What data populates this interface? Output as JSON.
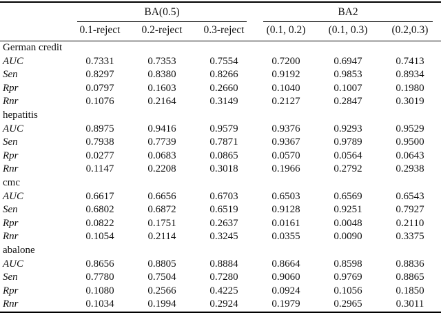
{
  "table": {
    "col_groups": [
      {
        "label": "BA(0.5)",
        "columns": [
          "0.1-reject",
          "0.2-reject",
          "0.3-reject"
        ]
      },
      {
        "label": "BA2",
        "columns": [
          "(0.1, 0.2)",
          "(0.1, 0.3)",
          "(0.2,0.3)"
        ]
      }
    ],
    "groups": [
      {
        "name": "German credit",
        "rows": [
          {
            "metric": "AUC",
            "values": [
              "0.7331",
              "0.7353",
              "0.7554",
              "0.7200",
              "0.6947",
              "0.7413"
            ]
          },
          {
            "metric": "Sen",
            "values": [
              "0.8297",
              "0.8380",
              "0.8266",
              "0.9192",
              "0.9853",
              "0.8934"
            ]
          },
          {
            "metric": "Rpr",
            "values": [
              "0.0797",
              "0.1603",
              "0.2660",
              "0.1040",
              "0.1007",
              "0.1980"
            ]
          },
          {
            "metric": "Rnr",
            "values": [
              "0.1076",
              "0.2164",
              "0.3149",
              "0.2127",
              "0.2847",
              "0.3019"
            ]
          }
        ]
      },
      {
        "name": "hepatitis",
        "rows": [
          {
            "metric": "AUC",
            "values": [
              "0.8975",
              "0.9416",
              "0.9579",
              "0.9376",
              "0.9293",
              "0.9529"
            ]
          },
          {
            "metric": "Sen",
            "values": [
              "0.7938",
              "0.7739",
              "0.7871",
              "0.9367",
              "0.9789",
              "0.9500"
            ]
          },
          {
            "metric": "Rpr",
            "values": [
              "0.0277",
              "0.0683",
              "0.0865",
              "0.0570",
              "0.0564",
              "0.0643"
            ]
          },
          {
            "metric": "Rnr",
            "values": [
              "0.1147",
              "0.2208",
              "0.3018",
              "0.1966",
              "0.2792",
              "0.2938"
            ]
          }
        ]
      },
      {
        "name": "cmc",
        "rows": [
          {
            "metric": "AUC",
            "values": [
              "0.6617",
              "0.6656",
              "0.6703",
              "0.6503",
              "0.6569",
              "0.6543"
            ]
          },
          {
            "metric": "Sen",
            "values": [
              "0.6802",
              "0.6872",
              "0.6519",
              "0.9128",
              "0.9251",
              "0.7927"
            ]
          },
          {
            "metric": "Rpr",
            "values": [
              "0.0822",
              "0.1751",
              "0.2637",
              "0.0161",
              "0.0048",
              "0.2110"
            ]
          },
          {
            "metric": "Rnr",
            "values": [
              "0.1054",
              "0.2114",
              "0.3245",
              "0.0355",
              "0.0090",
              "0.3375"
            ]
          }
        ]
      },
      {
        "name": "abalone",
        "rows": [
          {
            "metric": "AUC",
            "values": [
              "0.8656",
              "0.8805",
              "0.8884",
              "0.8664",
              "0.8598",
              "0.8836"
            ]
          },
          {
            "metric": "Sen",
            "values": [
              "0.7780",
              "0.7504",
              "0.7280",
              "0.9060",
              "0.9769",
              "0.8865"
            ]
          },
          {
            "metric": "Rpr",
            "values": [
              "0.1080",
              "0.2566",
              "0.4225",
              "0.0924",
              "0.1056",
              "0.1850"
            ]
          },
          {
            "metric": "Rnr",
            "values": [
              "0.1034",
              "0.1994",
              "0.2924",
              "0.1979",
              "0.2965",
              "0.3011"
            ]
          }
        ]
      }
    ]
  }
}
